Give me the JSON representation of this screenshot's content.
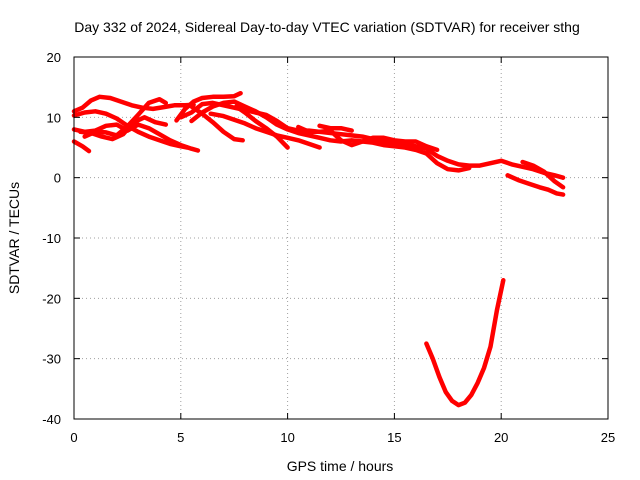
{
  "chart_data": {
    "type": "line",
    "title": "Day 332 of 2024, Sidereal Day-to-day VTEC variation (SDTVAR) for receiver sthg",
    "xlabel": "GPS time / hours",
    "ylabel": "SDTVAR / TECUs",
    "xlim": [
      0,
      25
    ],
    "ylim": [
      -40,
      20
    ],
    "xticks": [
      0,
      5,
      10,
      15,
      20,
      25
    ],
    "yticks": [
      -40,
      -30,
      -20,
      -10,
      0,
      10,
      20
    ],
    "grid": true,
    "series_color": "#ff0000",
    "series": [
      {
        "name": "arc-1",
        "points": [
          [
            0,
            11
          ],
          [
            0.4,
            11.6
          ],
          [
            0.8,
            12.8
          ],
          [
            1.2,
            13.4
          ],
          [
            1.7,
            13.2
          ],
          [
            2.2,
            12.6
          ],
          [
            2.7,
            12.0
          ],
          [
            3.2,
            11.6
          ],
          [
            3.7,
            11.4
          ],
          [
            4.2,
            11.7
          ],
          [
            4.7,
            12.0
          ],
          [
            5.2,
            12.0
          ],
          [
            5.6,
            12.1
          ]
        ]
      },
      {
        "name": "arc-2",
        "points": [
          [
            4.8,
            9.5
          ],
          [
            5.2,
            11.4
          ],
          [
            5.6,
            12.6
          ],
          [
            6.0,
            13.2
          ],
          [
            6.5,
            13.4
          ],
          [
            7.0,
            13.4
          ],
          [
            7.5,
            13.5
          ],
          [
            7.8,
            14.0
          ]
        ]
      },
      {
        "name": "arc-3",
        "points": [
          [
            0,
            10.3
          ],
          [
            0.5,
            10.8
          ],
          [
            1.0,
            11.0
          ],
          [
            1.5,
            10.6
          ],
          [
            2.0,
            9.8
          ],
          [
            2.5,
            8.6
          ],
          [
            3.0,
            7.6
          ],
          [
            3.5,
            6.8
          ],
          [
            4.0,
            6.2
          ],
          [
            4.5,
            5.6
          ],
          [
            5.0,
            5.2
          ],
          [
            5.3,
            5.0
          ]
        ]
      },
      {
        "name": "arc-4",
        "points": [
          [
            0,
            8.0
          ],
          [
            0.5,
            7.6
          ],
          [
            1.0,
            7.8
          ],
          [
            1.5,
            8.6
          ],
          [
            2.0,
            8.8
          ],
          [
            2.5,
            7.8
          ],
          [
            3.0,
            8.8
          ],
          [
            3.5,
            8.2
          ],
          [
            4.0,
            7.2
          ],
          [
            4.5,
            6.2
          ],
          [
            5.0,
            5.4
          ],
          [
            5.5,
            4.8
          ],
          [
            5.8,
            4.5
          ]
        ]
      },
      {
        "name": "arc-5",
        "points": [
          [
            0,
            6.0
          ],
          [
            0.4,
            5.2
          ],
          [
            0.7,
            4.4
          ]
        ]
      },
      {
        "name": "arc-6",
        "points": [
          [
            0.5,
            6.8
          ],
          [
            1.0,
            7.6
          ],
          [
            1.5,
            7.5
          ],
          [
            2.0,
            7.0
          ],
          [
            2.5,
            8.5
          ],
          [
            3.0,
            10.4
          ],
          [
            3.5,
            12.4
          ],
          [
            4.0,
            13.0
          ],
          [
            4.3,
            12.4
          ]
        ]
      },
      {
        "name": "arc-7",
        "points": [
          [
            0.3,
            7.6
          ],
          [
            0.8,
            7.4
          ],
          [
            1.3,
            6.8
          ],
          [
            1.8,
            6.4
          ],
          [
            2.3,
            7.2
          ],
          [
            2.8,
            9.2
          ],
          [
            3.3,
            10.0
          ],
          [
            3.8,
            9.2
          ],
          [
            4.3,
            8.8
          ]
        ]
      },
      {
        "name": "arc-8",
        "points": [
          [
            5.0,
            10.0
          ],
          [
            5.5,
            10.8
          ],
          [
            6.0,
            12.2
          ],
          [
            6.5,
            12.4
          ],
          [
            7.0,
            12.0
          ],
          [
            7.5,
            11.6
          ],
          [
            8.0,
            11.2
          ],
          [
            8.5,
            10.8
          ],
          [
            9.0,
            10.4
          ],
          [
            9.5,
            9.4
          ],
          [
            10.0,
            8.2
          ],
          [
            10.5,
            7.8
          ],
          [
            11.0,
            7.8
          ],
          [
            11.5,
            7.6
          ],
          [
            12.0,
            7.4
          ],
          [
            12.5,
            7.2
          ],
          [
            13.0,
            7.0
          ],
          [
            13.5,
            6.8
          ],
          [
            14.0,
            6.4
          ],
          [
            14.5,
            6.0
          ],
          [
            15.0,
            5.8
          ],
          [
            15.5,
            5.6
          ],
          [
            16.0,
            5.2
          ],
          [
            16.5,
            4.8
          ],
          [
            17.0,
            3.6
          ],
          [
            17.5,
            2.8
          ],
          [
            18.0,
            2.2
          ],
          [
            18.5,
            2.0
          ],
          [
            19.0,
            2.0
          ],
          [
            19.5,
            2.4
          ],
          [
            20.0,
            2.8
          ],
          [
            20.5,
            2.2
          ],
          [
            21.0,
            1.8
          ],
          [
            21.5,
            1.4
          ],
          [
            22.0,
            0.8
          ],
          [
            22.5,
            0.4
          ],
          [
            22.9,
            0.0
          ]
        ]
      },
      {
        "name": "arc-9",
        "points": [
          [
            5.5,
            9.4
          ],
          [
            6.0,
            10.8
          ],
          [
            6.5,
            11.8
          ],
          [
            7.0,
            12.4
          ],
          [
            7.5,
            12.6
          ],
          [
            8.0,
            11.8
          ],
          [
            8.5,
            11.0
          ],
          [
            9.0,
            10.0
          ],
          [
            9.5,
            8.8
          ],
          [
            10.0,
            8.0
          ],
          [
            10.5,
            7.4
          ],
          [
            11.0,
            7.0
          ],
          [
            11.5,
            6.6
          ],
          [
            12.0,
            6.2
          ],
          [
            12.5,
            6.0
          ],
          [
            13.0,
            6.2
          ],
          [
            13.5,
            6.0
          ],
          [
            14.0,
            5.8
          ],
          [
            14.5,
            5.4
          ],
          [
            15.0,
            5.2
          ],
          [
            15.5,
            5.0
          ],
          [
            16.0,
            4.6
          ],
          [
            16.5,
            4.0
          ],
          [
            17.0,
            2.4
          ],
          [
            17.5,
            1.4
          ],
          [
            18.0,
            1.2
          ],
          [
            18.5,
            1.6
          ]
        ]
      },
      {
        "name": "arc-10",
        "points": [
          [
            6.4,
            10.6
          ],
          [
            7.0,
            10.2
          ],
          [
            7.5,
            9.6
          ],
          [
            8.0,
            9.0
          ],
          [
            8.5,
            8.2
          ],
          [
            9.0,
            7.6
          ],
          [
            9.5,
            7.0
          ],
          [
            10.0,
            6.6
          ],
          [
            10.5,
            6.2
          ],
          [
            11.0,
            5.6
          ],
          [
            11.5,
            5.0
          ]
        ]
      },
      {
        "name": "arc-11",
        "points": [
          [
            5.5,
            11.8
          ],
          [
            6.0,
            10.6
          ],
          [
            6.5,
            9.2
          ],
          [
            7.0,
            7.6
          ],
          [
            7.5,
            6.4
          ],
          [
            7.9,
            6.2
          ]
        ]
      },
      {
        "name": "arc-12",
        "points": [
          [
            7.6,
            11.8
          ],
          [
            8.0,
            10.8
          ],
          [
            8.5,
            9.4
          ],
          [
            9.0,
            8.2
          ],
          [
            9.5,
            6.8
          ],
          [
            10.0,
            5.0
          ]
        ]
      },
      {
        "name": "arc-13",
        "points": [
          [
            10.5,
            8.4
          ],
          [
            11.0,
            7.6
          ],
          [
            11.5,
            7.6
          ],
          [
            12.0,
            7.8
          ],
          [
            12.5,
            6.2
          ],
          [
            13.0,
            5.4
          ],
          [
            13.5,
            6.0
          ],
          [
            14.0,
            6.6
          ],
          [
            14.5,
            6.6
          ],
          [
            15.0,
            6.2
          ],
          [
            15.5,
            6.0
          ],
          [
            16.0,
            6.0
          ],
          [
            16.5,
            5.2
          ],
          [
            17.0,
            4.6
          ]
        ]
      },
      {
        "name": "arc-14",
        "points": [
          [
            11.5,
            8.6
          ],
          [
            12.0,
            8.2
          ],
          [
            12.5,
            8.2
          ],
          [
            13.0,
            7.8
          ]
        ]
      },
      {
        "name": "arc-15",
        "points": [
          [
            20.3,
            0.4
          ],
          [
            20.8,
            -0.4
          ],
          [
            21.3,
            -1.0
          ],
          [
            21.8,
            -1.6
          ],
          [
            22.2,
            -2.0
          ],
          [
            22.6,
            -2.6
          ],
          [
            22.9,
            -2.8
          ]
        ]
      },
      {
        "name": "arc-16",
        "points": [
          [
            21.0,
            2.6
          ],
          [
            21.5,
            2.0
          ],
          [
            22.0,
            1.0
          ],
          [
            22.5,
            -0.6
          ],
          [
            22.9,
            -1.6
          ]
        ]
      },
      {
        "name": "arc-17",
        "points": [
          [
            16.5,
            -27.5
          ],
          [
            16.8,
            -30.0
          ],
          [
            17.1,
            -33.0
          ],
          [
            17.4,
            -35.5
          ],
          [
            17.7,
            -37.0
          ],
          [
            18.0,
            -37.7
          ],
          [
            18.3,
            -37.3
          ],
          [
            18.6,
            -36.0
          ],
          [
            18.9,
            -34.0
          ],
          [
            19.2,
            -31.5
          ],
          [
            19.5,
            -28.0
          ],
          [
            19.8,
            -22.0
          ],
          [
            20.1,
            -17.0
          ]
        ]
      }
    ]
  }
}
